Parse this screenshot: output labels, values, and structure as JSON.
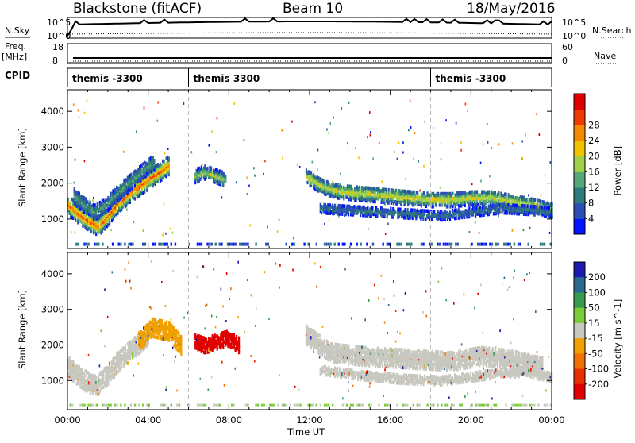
{
  "header": {
    "station": "Blackstone (fitACF)",
    "beam": "Beam 10",
    "date": "18/May/2016"
  },
  "top_panels": {
    "nsky_label": "N.Sky",
    "nsearch_label": "N.Search",
    "nsky_axis": [
      "10^5",
      "10^0"
    ],
    "freq_label": "Freq.",
    "freq_unit": "[MHz]",
    "freq_axis": [
      "18",
      "8"
    ],
    "nave_label": "Nave",
    "nave_axis": [
      "60",
      "0"
    ],
    "cpid_label": "CPID",
    "cpid_segments": [
      {
        "label": "themis -3300",
        "start_hour": 0
      },
      {
        "label": "themis 3300",
        "start_hour": 6
      },
      {
        "label": "themis -3300",
        "start_hour": 18
      }
    ]
  },
  "chart_data": [
    {
      "type": "heatmap",
      "panel": "power",
      "ylabel": "Slant Range [km]",
      "xlabel": "Time UT",
      "xlim_hours": [
        0,
        24
      ],
      "ylim": [
        180,
        4600
      ],
      "x_ticks": [
        "00:00",
        "04:00",
        "08:00",
        "12:00",
        "16:00",
        "20:00",
        "00:00"
      ],
      "y_ticks": [
        1000,
        2000,
        3000,
        4000
      ],
      "colorbar": {
        "label": "Power [dB]",
        "ticks": [
          "4",
          "8",
          "12",
          "16",
          "20",
          "24",
          "28"
        ],
        "colors": [
          "#0014ff",
          "#2b4fb5",
          "#2f7a7a",
          "#57a877",
          "#9ed24a",
          "#f1c400",
          "#f58a00",
          "#ee3a00",
          "#e00000"
        ]
      },
      "bands": [
        {
          "hours": [
            0.0,
            0.5,
            1.0,
            1.5,
            2.0,
            2.5,
            3.0,
            3.5,
            4.0,
            4.5,
            5.0
          ],
          "ranges": [
            1400,
            1150,
            950,
            800,
            1100,
            1450,
            1700,
            1900,
            2100,
            2300,
            2500
          ],
          "width": 250,
          "level": 0.85
        },
        {
          "hours": [
            0.3,
            0.8,
            1.3,
            1.8,
            2.3,
            2.8,
            3.3,
            3.8,
            4.3
          ],
          "ranges": [
            1650,
            1400,
            1200,
            1350,
            1650,
            1900,
            2150,
            2400,
            2600
          ],
          "width": 220,
          "level": 0.35
        },
        {
          "hours": [
            6.3,
            6.8,
            7.3,
            7.8
          ],
          "ranges": [
            2200,
            2300,
            2200,
            2100
          ],
          "width": 180,
          "level": 0.5
        },
        {
          "hours": [
            11.8,
            12.5,
            13.2,
            14.0,
            15.0,
            16.0,
            17.0,
            18.0,
            19.0,
            20.0,
            21.0,
            22.0,
            23.0,
            24.0
          ],
          "ranges": [
            2200,
            1950,
            1800,
            1750,
            1700,
            1650,
            1600,
            1550,
            1550,
            1600,
            1600,
            1500,
            1400,
            1250
          ],
          "width": 200,
          "level": 0.6
        },
        {
          "hours": [
            12.5,
            14.0,
            15.5,
            17.0,
            18.5,
            20.0,
            21.5,
            23.0,
            24.0
          ],
          "ranges": [
            1300,
            1250,
            1200,
            1150,
            1100,
            1200,
            1300,
            1250,
            1200
          ],
          "width": 120,
          "level": 0.25
        }
      ]
    },
    {
      "type": "heatmap",
      "panel": "velocity",
      "ylabel": "Slant Range [km]",
      "xlabel": "Time UT",
      "xlim_hours": [
        0,
        24
      ],
      "ylim": [
        180,
        4600
      ],
      "x_ticks": [
        "00:00",
        "04:00",
        "08:00",
        "12:00",
        "16:00",
        "20:00",
        "00:00"
      ],
      "y_ticks": [
        1000,
        2000,
        3000,
        4000
      ],
      "colorbar": {
        "label": "Velocity [m s^-1]",
        "ticks": [
          "200",
          "100",
          "50",
          "15",
          "-15",
          "-50",
          "-100",
          "-200"
        ],
        "colors": [
          "#1a1ab0",
          "#2a6a90",
          "#3a9a50",
          "#7ccc3a",
          "#c8c8c0",
          "#f0a000",
          "#f07000",
          "#e83000",
          "#e00000"
        ]
      },
      "bands": [
        {
          "hours": [
            0.0,
            0.5,
            1.0,
            1.5,
            2.0,
            2.5,
            3.0,
            3.5,
            4.0
          ],
          "ranges": [
            1400,
            1150,
            950,
            900,
            1200,
            1550,
            1800,
            2050,
            2300
          ],
          "width": 280,
          "color": "#c8c8c0"
        },
        {
          "hours": [
            3.5,
            4.2,
            5.0,
            5.6
          ],
          "ranges": [
            2100,
            2500,
            2400,
            2000
          ],
          "width": 260,
          "color": "#f0a000"
        },
        {
          "hours": [
            6.3,
            6.8,
            7.3,
            7.9,
            8.5
          ],
          "ranges": [
            2100,
            2000,
            2100,
            2200,
            2000
          ],
          "width": 220,
          "color": "#e00000"
        },
        {
          "hours": [
            11.8,
            13.0,
            14.5,
            16.0,
            17.5,
            19.0,
            20.5,
            22.0,
            23.5
          ],
          "ranges": [
            2300,
            1800,
            1700,
            1650,
            1600,
            1550,
            1700,
            1600,
            1400
          ],
          "width": 260,
          "color": "#c8c8c0"
        },
        {
          "hours": [
            12.5,
            14.5,
            16.5,
            18.5,
            20.5,
            22.5,
            24.0
          ],
          "ranges": [
            1300,
            1150,
            1050,
            1000,
            1150,
            1250,
            1100
          ],
          "width": 120,
          "color": "#c8c8c0"
        }
      ]
    }
  ]
}
